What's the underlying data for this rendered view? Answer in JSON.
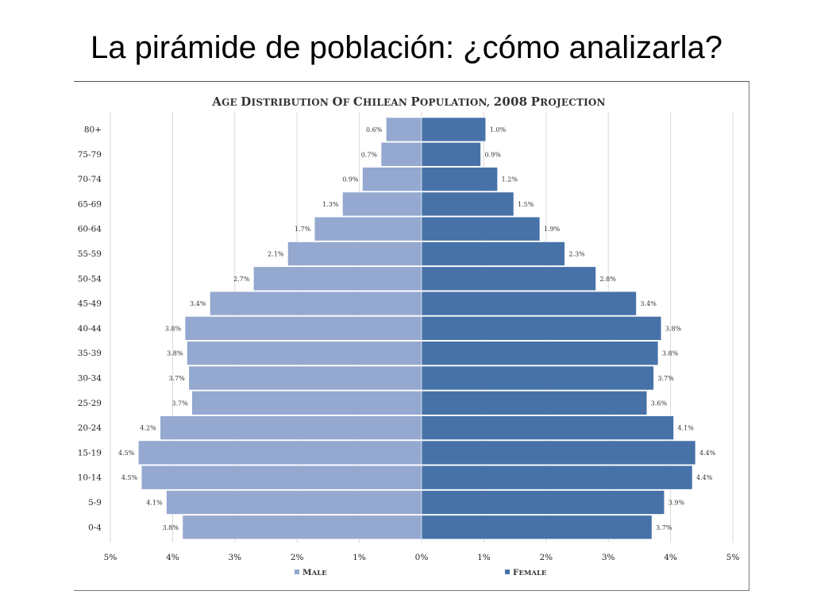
{
  "slide": {
    "title": "La pirámide de población: ¿cómo analizarla?"
  },
  "colors": {
    "male": "#94a8d0",
    "female": "#4772a8",
    "grid": "#d9d9d9"
  },
  "chart_data": {
    "type": "bar",
    "orientation": "horizontal-butterfly",
    "title": "Age Distribution of Chilean Population, 2008 Projection",
    "categories": [
      "80+",
      "75-79",
      "70-74",
      "65-69",
      "60-64",
      "55-59",
      "50-54",
      "45-49",
      "40-44",
      "35-39",
      "30-34",
      "25-29",
      "20-24",
      "15-19",
      "10-14",
      "5-9",
      "0-4"
    ],
    "series": [
      {
        "name": "Male",
        "values": [
          0.57,
          0.65,
          0.95,
          1.27,
          1.72,
          2.15,
          2.7,
          3.4,
          3.8,
          3.77,
          3.74,
          3.69,
          4.2,
          4.55,
          4.5,
          4.1,
          3.84
        ],
        "labels": [
          "0.6%",
          "0.7%",
          "0.9%",
          "1.3%",
          "1.7%",
          "2.1%",
          "2.7%",
          "3.4%",
          "3.8%",
          "3.8%",
          "3.7%",
          "3.7%",
          "4.2%",
          "4.5%",
          "4.5%",
          "4.1%",
          "3.8%"
        ]
      },
      {
        "name": "Female",
        "values": [
          1.03,
          0.95,
          1.22,
          1.48,
          1.9,
          2.3,
          2.8,
          3.45,
          3.85,
          3.8,
          3.73,
          3.62,
          4.05,
          4.4,
          4.35,
          3.9,
          3.7
        ],
        "labels": [
          "1.0%",
          "0.9%",
          "1.2%",
          "1.5%",
          "1.9%",
          "2.3%",
          "2.8%",
          "3.4%",
          "3.8%",
          "3.8%",
          "3.7%",
          "3.6%",
          "4.1%",
          "4.4%",
          "4.4%",
          "3.9%",
          "3.7%"
        ]
      }
    ],
    "x_ticks": [
      "5%",
      "4%",
      "3%",
      "2%",
      "1%",
      "0%",
      "1%",
      "2%",
      "3%",
      "4%",
      "5%"
    ],
    "xlim": [
      -5,
      5
    ],
    "grid": true,
    "legend_position": "bottom"
  }
}
